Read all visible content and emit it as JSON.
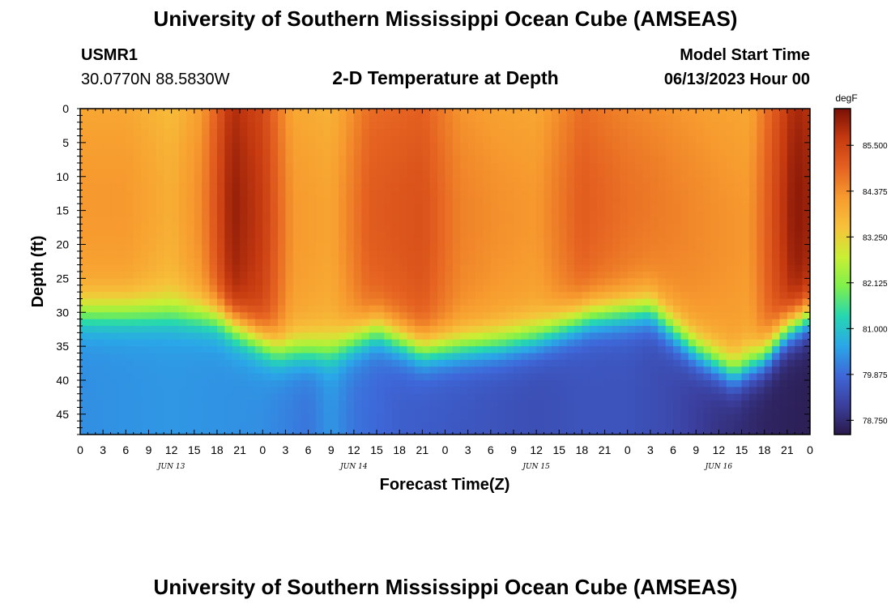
{
  "header": {
    "title": "University of Southern Mississippi Ocean Cube (AMSEAS)",
    "station_id": "USMR1",
    "coords": "30.0770N  88.5830W",
    "subtitle": "2-D Temperature at Depth",
    "model_start_label": "Model Start Time",
    "model_start_value": "06/13/2023 Hour 00"
  },
  "footer": {
    "title": "University of Southern Mississippi Ocean Cube (AMSEAS)"
  },
  "colors": {
    "scale": [
      "#2a1a4a",
      "#3b3f9e",
      "#3e68d9",
      "#2aa7e8",
      "#26d7b0",
      "#7ef04b",
      "#c9ef34",
      "#f7c23a",
      "#f79b2f",
      "#e56221",
      "#c63a10",
      "#7a1005"
    ]
  },
  "chart_data": {
    "type": "heatmap",
    "title": "2-D Temperature at Depth",
    "xlabel": "Forecast Time(Z)",
    "ylabel": "Depth (ft)",
    "colorbar_unit": "degF",
    "colorbar_ticks": [
      "85.500",
      "84.375",
      "83.250",
      "82.125",
      "81.000",
      "79.875",
      "78.750"
    ],
    "colorbar_range": [
      78.4,
      86.4
    ],
    "x_hours": [
      0,
      96
    ],
    "x_tick_labels": [
      "0",
      "3",
      "6",
      "9",
      "12",
      "15",
      "18",
      "21",
      "0",
      "3",
      "6",
      "9",
      "12",
      "15",
      "18",
      "21",
      "0",
      "3",
      "6",
      "9",
      "12",
      "15",
      "18",
      "21",
      "0",
      "3",
      "6",
      "9",
      "12",
      "15",
      "18",
      "21",
      "0"
    ],
    "x_day_labels": [
      {
        "label": "JUN 13",
        "hour": 12
      },
      {
        "label": "JUN 14",
        "hour": 36
      },
      {
        "label": "JUN 15",
        "hour": 60
      },
      {
        "label": "JUN 16",
        "hour": 84
      }
    ],
    "y_ticks": [
      0,
      5,
      10,
      15,
      20,
      25,
      30,
      35,
      40,
      45
    ],
    "y_range": [
      0,
      48
    ],
    "thermocline": {
      "hours": [
        0,
        6,
        12,
        18,
        22,
        26,
        33,
        39,
        45,
        50,
        55,
        60,
        67,
        75,
        81,
        86,
        90,
        93,
        96
      ],
      "depth_ft": [
        27.5,
        27.5,
        27.5,
        28,
        30.5,
        33,
        33,
        30,
        33,
        32.5,
        32,
        31,
        28,
        27,
        33,
        36.5,
        34,
        30,
        28
      ]
    },
    "surface_column_temp": {
      "hours": [
        0,
        6,
        12,
        16,
        20,
        24,
        28,
        33,
        38,
        45,
        50,
        55,
        60,
        66,
        72,
        78,
        84,
        88,
        91,
        94,
        96
      ],
      "degF": [
        84.0,
        84.0,
        83.6,
        84.2,
        85.9,
        85.4,
        84.0,
        83.8,
        84.8,
        85.0,
        84.3,
        84.1,
        84.0,
        84.8,
        84.5,
        84.3,
        84.1,
        84.0,
        85.0,
        86.0,
        85.8
      ]
    },
    "deep_temp": {
      "hours": [
        0,
        12,
        24,
        30,
        33,
        36,
        42,
        48,
        54,
        60,
        66,
        72,
        78,
        84,
        90,
        96
      ],
      "degF": [
        80.3,
        80.4,
        80.3,
        80.0,
        80.4,
        80.0,
        79.7,
        79.6,
        79.5,
        79.4,
        79.5,
        79.5,
        79.3,
        78.9,
        78.6,
        78.5
      ]
    }
  }
}
